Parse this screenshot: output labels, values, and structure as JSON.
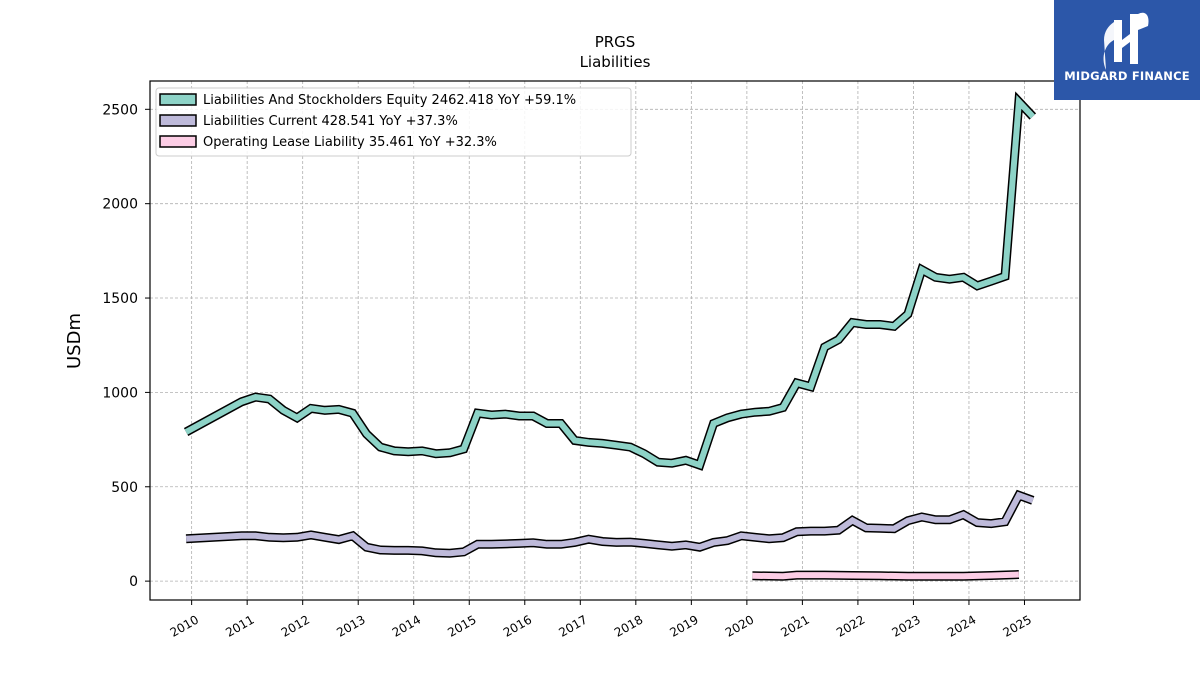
{
  "chart_data": {
    "type": "line",
    "title": "PRGS",
    "subtitle": "Liabilities",
    "ylabel": "USDm",
    "xlabel": "",
    "ylim": [
      -100,
      2650
    ],
    "xlim": [
      2009.25,
      2026.0
    ],
    "yticks": [
      0,
      500,
      1000,
      1500,
      2000,
      2500
    ],
    "xticks": [
      "2010",
      "2011",
      "2012",
      "2013",
      "2014",
      "2015",
      "2016",
      "2017",
      "2018",
      "2019",
      "2020",
      "2021",
      "2022",
      "2023",
      "2024",
      "2025"
    ],
    "grid": true,
    "legend_position": "top-left",
    "series": [
      {
        "name": "Liabilities And Stockholders Equity",
        "legend_label": "Liabilities And Stockholders Equity  2462.418 YoY +59.1%",
        "color": "#8dd3c7",
        "x": [
          2009.9,
          2010.9,
          2011.15,
          2011.4,
          2011.65,
          2011.9,
          2012.15,
          2012.4,
          2012.65,
          2012.9,
          2013.15,
          2013.4,
          2013.65,
          2013.9,
          2014.15,
          2014.4,
          2014.65,
          2014.9,
          2015.15,
          2015.4,
          2015.65,
          2015.9,
          2016.15,
          2016.4,
          2016.65,
          2016.9,
          2017.15,
          2017.4,
          2017.65,
          2017.9,
          2018.15,
          2018.4,
          2018.65,
          2018.9,
          2019.15,
          2019.4,
          2019.65,
          2019.9,
          2020.15,
          2020.4,
          2020.65,
          2020.9,
          2021.15,
          2021.4,
          2021.65,
          2021.9,
          2022.15,
          2022.4,
          2022.65,
          2022.9,
          2023.15,
          2023.4,
          2023.65,
          2023.9,
          2024.15,
          2024.4,
          2024.65,
          2024.9,
          2025.15
        ],
        "values": [
          790,
          950,
          975,
          965,
          905,
          865,
          915,
          905,
          910,
          890,
          780,
          710,
          690,
          685,
          690,
          675,
          680,
          700,
          890,
          880,
          885,
          875,
          875,
          835,
          835,
          745,
          735,
          730,
          720,
          710,
          675,
          630,
          625,
          640,
          615,
          835,
          865,
          885,
          895,
          900,
          920,
          1050,
          1030,
          1240,
          1280,
          1370,
          1360,
          1360,
          1350,
          1415,
          1650,
          1610,
          1600,
          1610,
          1565,
          1590,
          1615,
          2540,
          2462
        ]
      },
      {
        "name": "Liabilities Current",
        "legend_label": "Liabilities Current  428.541 YoY +37.3%",
        "color": "#bebada",
        "x": [
          2009.9,
          2010.9,
          2011.15,
          2011.4,
          2011.65,
          2011.9,
          2012.15,
          2012.4,
          2012.65,
          2012.9,
          2013.15,
          2013.4,
          2013.65,
          2013.9,
          2014.15,
          2014.4,
          2014.65,
          2014.9,
          2015.15,
          2015.4,
          2015.65,
          2015.9,
          2016.15,
          2016.4,
          2016.65,
          2016.9,
          2017.15,
          2017.4,
          2017.65,
          2017.9,
          2018.15,
          2018.4,
          2018.65,
          2018.9,
          2019.15,
          2019.4,
          2019.65,
          2019.9,
          2020.15,
          2020.4,
          2020.65,
          2020.9,
          2021.15,
          2021.4,
          2021.65,
          2021.9,
          2022.15,
          2022.4,
          2022.65,
          2022.9,
          2023.15,
          2023.4,
          2023.65,
          2023.9,
          2024.15,
          2024.4,
          2024.65,
          2024.9,
          2025.15
        ],
        "values": [
          225,
          240,
          240,
          232,
          230,
          232,
          245,
          232,
          220,
          240,
          180,
          165,
          163,
          163,
          160,
          150,
          148,
          155,
          195,
          195,
          197,
          200,
          203,
          195,
          195,
          205,
          222,
          210,
          205,
          207,
          200,
          192,
          185,
          192,
          180,
          205,
          215,
          240,
          232,
          225,
          230,
          262,
          265,
          265,
          270,
          322,
          282,
          280,
          278,
          320,
          340,
          325,
          325,
          352,
          310,
          305,
          315,
          455,
          428
        ]
      },
      {
        "name": "Operating Lease Liability",
        "legend_label": "Operating Lease Liability  35.461 YoY +32.3%",
        "color": "#fccde5",
        "x": [
          2020.1,
          2020.65,
          2020.9,
          2021.4,
          2021.9,
          2022.4,
          2022.9,
          2023.4,
          2023.9,
          2024.4,
          2024.9
        ],
        "values": [
          28,
          26,
          32,
          32,
          30,
          28,
          26,
          26,
          26,
          30,
          35
        ]
      }
    ]
  },
  "logo": {
    "text": "MIDGARD FINANCE",
    "background": "#2c57a9",
    "icon": "midgard-logo-icon"
  }
}
